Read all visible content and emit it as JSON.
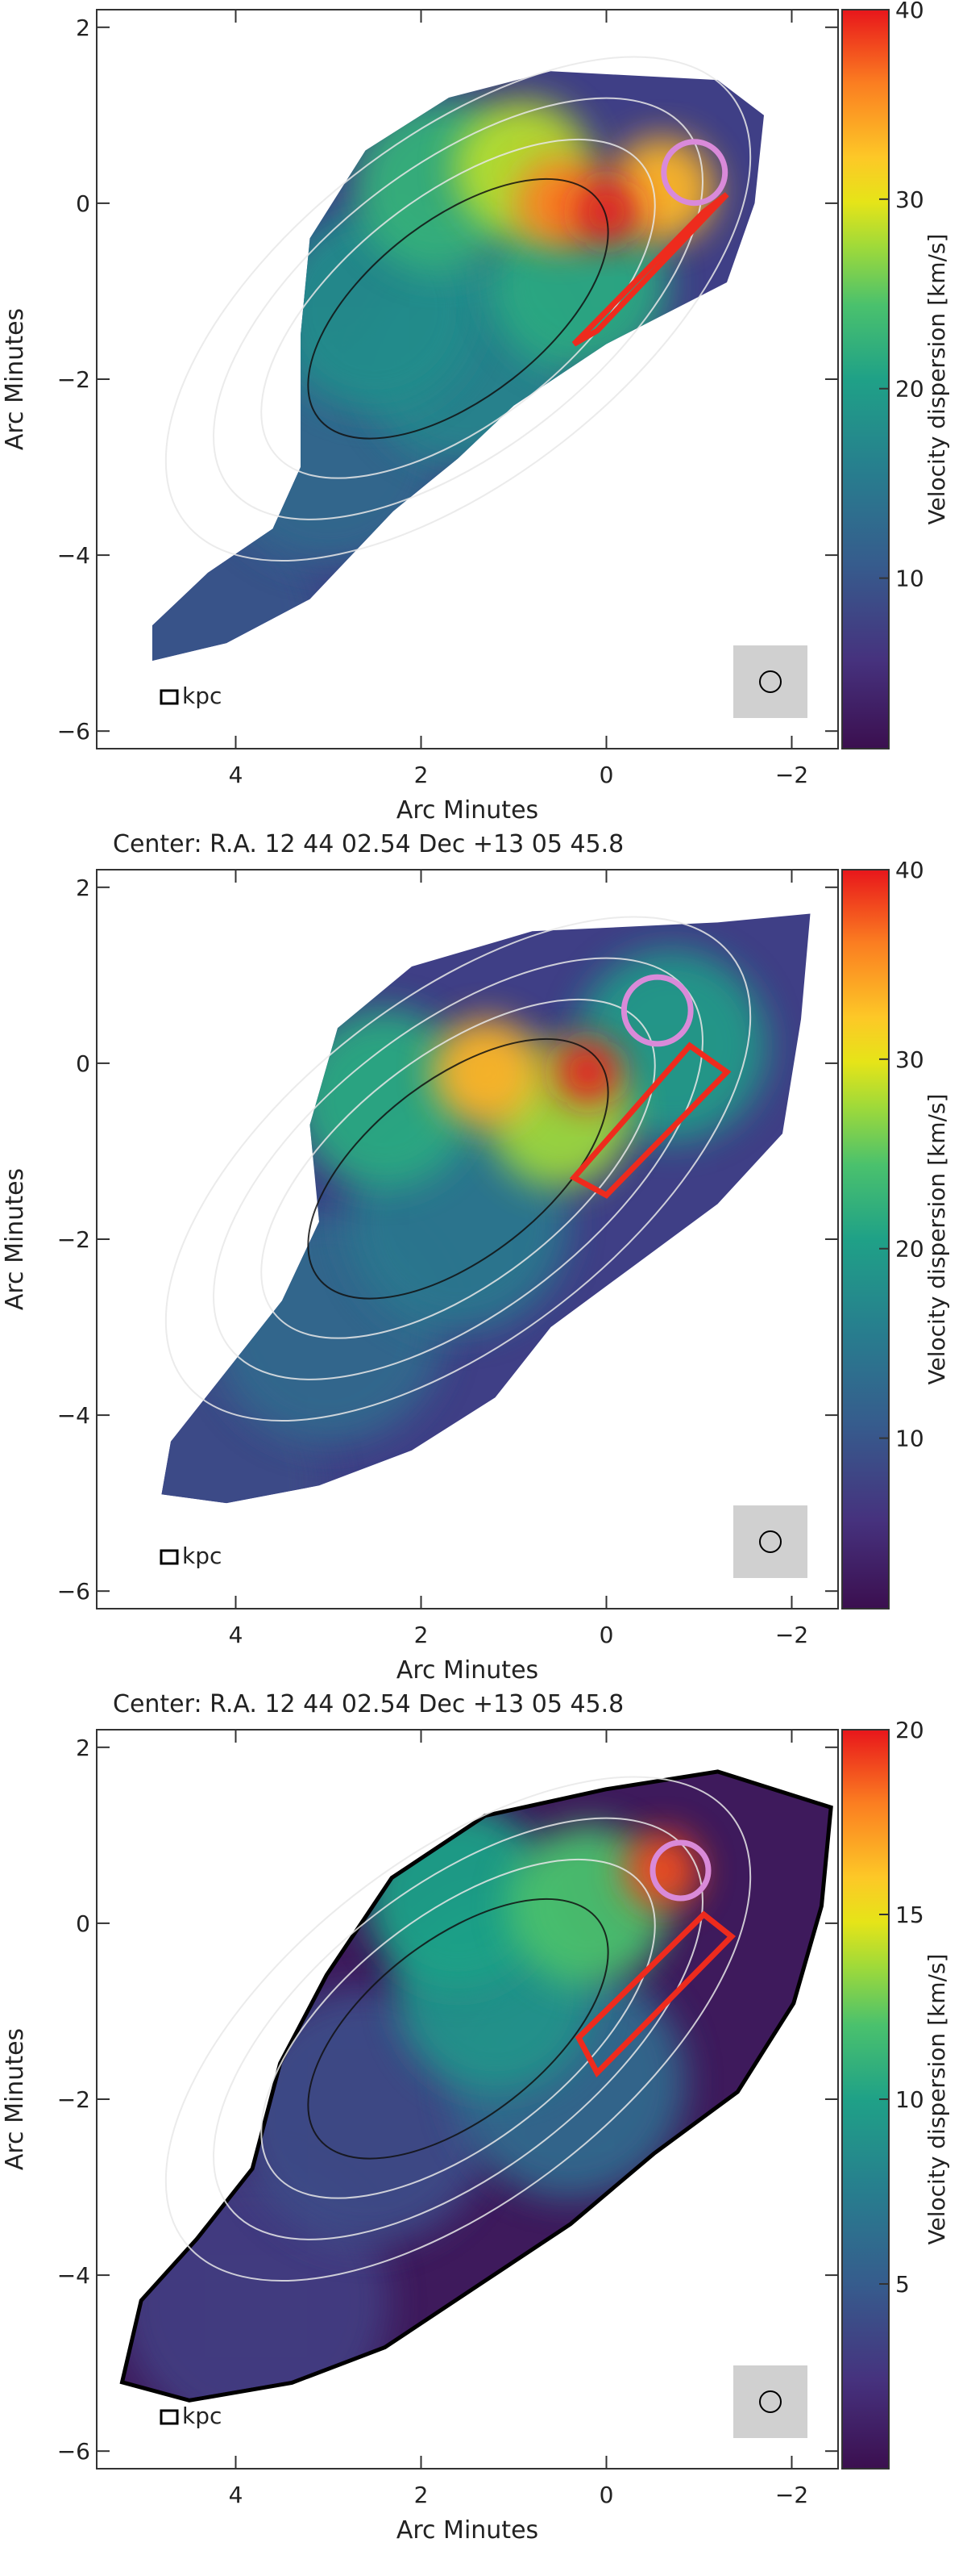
{
  "chart_data": [
    {
      "type": "heatmap",
      "xlabel": "Arc Minutes",
      "ylabel": "Arc Minutes",
      "x_range": [
        5.5,
        -2.5
      ],
      "y_range": [
        -6.2,
        2.2
      ],
      "x_ticks": [
        4,
        2,
        0,
        -2
      ],
      "y_ticks": [
        2,
        0,
        -2,
        -4,
        -6
      ],
      "x_tick_labels": [
        "4",
        "2",
        "0",
        "−2"
      ],
      "y_tick_labels": [
        "2",
        "0",
        "−2",
        "−4",
        "−6"
      ],
      "colorbar": {
        "label": "Velocity dispersion [km/s]",
        "range": [
          1,
          40
        ],
        "ticks": [
          10,
          20,
          30,
          40
        ],
        "tick_labels": [
          "10",
          "20",
          "30",
          "40"
        ]
      },
      "scale_bar_label": "kpc",
      "footer": "",
      "color_max": 40,
      "hotspots": [
        {
          "x": 0.0,
          "y": -0.1,
          "value": 40
        },
        {
          "x": 0.5,
          "y": 0.0,
          "value": 36
        },
        {
          "x": -0.6,
          "y": 0.15,
          "value": 33
        },
        {
          "x": 0.9,
          "y": 0.4,
          "value": 28
        },
        {
          "x": 1.8,
          "y": 0.2,
          "value": 22
        },
        {
          "x": 0.3,
          "y": -0.9,
          "value": 21
        },
        {
          "x": 2.5,
          "y": -1.2,
          "value": 17
        },
        {
          "x": 1.5,
          "y": -1.8,
          "value": 16
        },
        {
          "x": 3.0,
          "y": -2.8,
          "value": 12
        },
        {
          "x": 4.4,
          "y": -4.8,
          "value": 9
        }
      ],
      "circle_region": {
        "x": -0.95,
        "y": 0.35,
        "r": 0.33
      },
      "box_region": [
        [
          -1.05,
          -0.1
        ],
        [
          -1.3,
          0.1
        ],
        [
          0.1,
          -1.45
        ],
        [
          0.35,
          -1.6
        ]
      ]
    },
    {
      "type": "heatmap",
      "xlabel": "Arc Minutes",
      "ylabel": "Arc Minutes",
      "x_range": [
        5.5,
        -2.5
      ],
      "y_range": [
        -6.2,
        2.2
      ],
      "x_ticks": [
        4,
        2,
        0,
        -2
      ],
      "y_ticks": [
        2,
        0,
        -2,
        -4,
        -6
      ],
      "x_tick_labels": [
        "4",
        "2",
        "0",
        "−2"
      ],
      "y_tick_labels": [
        "2",
        "0",
        "−2",
        "−4",
        "−6"
      ],
      "colorbar": {
        "label": "Velocity dispersion [km/s]",
        "range": [
          1,
          40
        ],
        "ticks": [
          10,
          20,
          30,
          40
        ],
        "tick_labels": [
          "10",
          "20",
          "30",
          "40"
        ]
      },
      "scale_bar_label": "kpc",
      "footer": "Center:   R.A. 12 44 02.54       Dec   +13 05 45.8",
      "color_max": 40,
      "hotspots": [
        {
          "x": 0.2,
          "y": -0.1,
          "value": 40
        },
        {
          "x": 1.3,
          "y": -0.1,
          "value": 33
        },
        {
          "x": 0.5,
          "y": -0.6,
          "value": 27
        },
        {
          "x": 2.4,
          "y": -0.4,
          "value": 21
        },
        {
          "x": -0.7,
          "y": 0.2,
          "value": 19
        },
        {
          "x": 1.6,
          "y": -1.8,
          "value": 14
        },
        {
          "x": 3.0,
          "y": -3.0,
          "value": 12
        },
        {
          "x": 4.4,
          "y": -4.8,
          "value": 8
        }
      ],
      "circle_region": {
        "x": -0.55,
        "y": 0.6,
        "r": 0.36
      },
      "box_region": [
        [
          -0.9,
          0.2
        ],
        [
          -1.3,
          -0.1
        ],
        [
          0.0,
          -1.5
        ],
        [
          0.35,
          -1.3
        ]
      ]
    },
    {
      "type": "heatmap",
      "xlabel": "Arc Minutes",
      "ylabel": "Arc Minutes",
      "x_range": [
        5.5,
        -2.5
      ],
      "y_range": [
        -6.2,
        2.2
      ],
      "x_ticks": [
        4,
        2,
        0,
        -2
      ],
      "y_ticks": [
        2,
        0,
        -2,
        -4,
        -6
      ],
      "x_tick_labels": [
        "4",
        "2",
        "0",
        "−2"
      ],
      "y_tick_labels": [
        "2",
        "0",
        "−2",
        "−4",
        "−6"
      ],
      "colorbar": {
        "label": "Velocity dispersion [km/s]",
        "range": [
          0,
          20
        ],
        "ticks": [
          5,
          10,
          15,
          20
        ],
        "tick_labels": [
          "5",
          "10",
          "15",
          "20"
        ]
      },
      "scale_bar_label": "kpc",
      "footer": "Center:   R.A. 12 44 02.54       Dec   +13 05 45.8",
      "color_max": 20,
      "hotspots": [
        {
          "x": -0.6,
          "y": 0.6,
          "value": 19
        },
        {
          "x": 0.2,
          "y": 0.2,
          "value": 12
        },
        {
          "x": 1.6,
          "y": 0.3,
          "value": 10
        },
        {
          "x": 1.2,
          "y": -0.8,
          "value": 9
        },
        {
          "x": 0.4,
          "y": -1.8,
          "value": 6
        },
        {
          "x": 2.6,
          "y": -2.2,
          "value": 4
        },
        {
          "x": 3.8,
          "y": -4.3,
          "value": 3
        }
      ],
      "circle_region": {
        "x": -0.8,
        "y": 0.6,
        "r": 0.3
      },
      "box_region": [
        [
          -1.05,
          0.1
        ],
        [
          -1.35,
          -0.15
        ],
        [
          0.1,
          -1.7
        ],
        [
          0.3,
          -1.3
        ]
      ]
    }
  ]
}
